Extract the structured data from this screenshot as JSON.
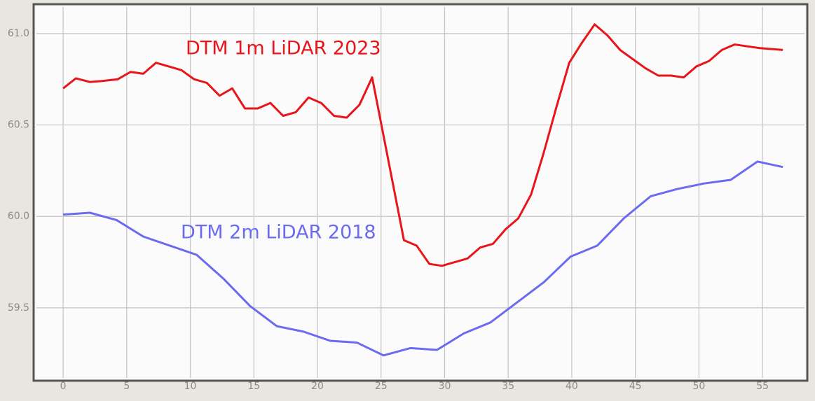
{
  "chart_data": {
    "type": "line",
    "xlim": [
      -2.1,
      58.3
    ],
    "ylim": [
      59.117,
      61.145
    ],
    "xticks": [
      0,
      5,
      10,
      15,
      20,
      25,
      30,
      35,
      40,
      45,
      50,
      55
    ],
    "yticks": [
      {
        "value": 59.5,
        "label": "59.5"
      },
      {
        "value": 60,
        "label": "60.0"
      },
      {
        "value": 60.5,
        "label": "60.5"
      },
      {
        "value": 61,
        "label": "61.0"
      }
    ],
    "grid": true,
    "series": [
      {
        "name": "DTM 1m LiDAR 2023",
        "color": "#e8151b",
        "x": [
          0,
          1,
          2.1,
          3,
          4.3,
          5.3,
          6.3,
          7.3,
          8.3,
          9.3,
          10.3,
          11.3,
          12.3,
          13.3,
          14.3,
          15.3,
          16.3,
          17.3,
          18.3,
          19.3,
          20.3,
          21.3,
          22.3,
          23.3,
          24.3,
          26.8,
          27.8,
          28.8,
          29.8,
          30.8,
          31.8,
          32.8,
          33.8,
          34.8,
          35.8,
          36.8,
          37.8,
          38.8,
          39.8,
          40.8,
          41.8,
          42.8,
          43.8,
          44.8,
          45.8,
          46.8,
          47.8,
          48.8,
          49.8,
          50.8,
          51.8,
          52.8,
          53.8,
          54.8,
          56.6
        ],
        "values": [
          60.7,
          60.755,
          60.735,
          60.74,
          60.75,
          60.79,
          60.78,
          60.84,
          60.82,
          60.8,
          60.75,
          60.73,
          60.66,
          60.7,
          60.59,
          60.59,
          60.62,
          60.55,
          60.57,
          60.65,
          60.62,
          60.55,
          60.54,
          60.61,
          60.76,
          59.87,
          59.84,
          59.74,
          59.73,
          59.75,
          59.77,
          59.83,
          59.85,
          59.93,
          59.99,
          60.12,
          60.35,
          60.6,
          60.84,
          60.95,
          61.05,
          60.99,
          60.91,
          60.86,
          60.81,
          60.77,
          60.77,
          60.76,
          60.82,
          60.85,
          60.91,
          60.94,
          60.93,
          60.92,
          60.91
        ]
      },
      {
        "name": "DTM 2m LiDAR 2018",
        "color": "#6b6bf0",
        "x": [
          0,
          2.1,
          4.2,
          6.3,
          8.4,
          10.5,
          12.6,
          14.7,
          16.8,
          18.9,
          21,
          23.1,
          25.2,
          27.3,
          29.4,
          31.5,
          33.6,
          35.7,
          37.8,
          39.9,
          42,
          44.1,
          46.2,
          48.3,
          50.4,
          52.5,
          54.6,
          56.6
        ],
        "values": [
          60.01,
          60.02,
          59.98,
          59.89,
          59.84,
          59.79,
          59.66,
          59.51,
          59.4,
          59.37,
          59.32,
          59.31,
          59.24,
          59.28,
          59.27,
          59.36,
          59.42,
          59.53,
          59.64,
          59.78,
          59.84,
          59.99,
          60.11,
          60.15,
          60.18,
          60.2,
          60.3,
          60.27
        ]
      }
    ]
  }
}
